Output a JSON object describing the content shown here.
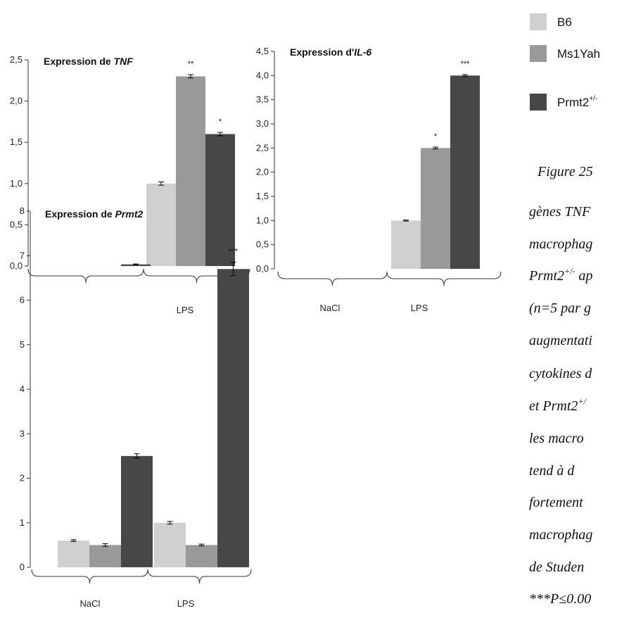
{
  "legend": {
    "items": [
      {
        "label": "B6",
        "color": "#d0d0d0"
      },
      {
        "label": "Ms1Yah",
        "color": "#999999"
      },
      {
        "label": "Prmt2",
        "sup": "+/-",
        "color": "#474747"
      }
    ]
  },
  "caption": {
    "lines": [
      {
        "text": "Figure 25"
      },
      {
        "text": "gènes TNF"
      },
      {
        "text": "macrophag"
      },
      {
        "text": "Prmt2",
        "sup": "+/-",
        "rest": " ap"
      },
      {
        "text": "(n=5 par g"
      },
      {
        "text": "augmentati"
      },
      {
        "text": "cytokines d"
      },
      {
        "text": "et Prmt2",
        "sup": "+/"
      },
      {
        "text": "les macro"
      },
      {
        "text": "tend à d"
      },
      {
        "text": "fortement"
      },
      {
        "text": "macrophag"
      },
      {
        "text": "de Studen"
      },
      {
        "text": "***P≤0.00"
      }
    ]
  },
  "chart_data": [
    {
      "type": "bar",
      "title_prefix": "Expression de ",
      "title_gene": "TNF",
      "groups": [
        "",
        "LPS"
      ],
      "series": [
        {
          "name": "B6",
          "values": [
            null,
            1.0
          ],
          "errors": [
            null,
            0.02
          ]
        },
        {
          "name": "Ms1Yah",
          "values": [
            null,
            2.3
          ],
          "errors": [
            null,
            0.02
          ]
        },
        {
          "name": "Prmt2+/-",
          "values": [
            0.02,
            1.6
          ],
          "errors": [
            0.005,
            0.02
          ]
        }
      ],
      "significance": [
        {
          "series": 1,
          "group": 1,
          "label": "**"
        },
        {
          "series": 2,
          "group": 1,
          "label": "*"
        }
      ],
      "yticks": [
        "0,0",
        "0,5",
        "1,0",
        "1,5",
        "2,0",
        "2,5"
      ],
      "ylim": [
        0,
        2.5
      ]
    },
    {
      "type": "bar",
      "title_prefix": "Expression d'",
      "title_gene": "IL-6",
      "groups": [
        "NaCl",
        "LPS"
      ],
      "series": [
        {
          "name": "B6",
          "values": [
            null,
            1.0
          ],
          "errors": [
            null,
            0.01
          ]
        },
        {
          "name": "Ms1Yah",
          "values": [
            null,
            2.5
          ],
          "errors": [
            null,
            0.02
          ]
        },
        {
          "name": "Prmt2+/-",
          "values": [
            null,
            4.0
          ],
          "errors": [
            null,
            0.02
          ]
        }
      ],
      "significance": [
        {
          "series": 1,
          "group": 1,
          "label": "*"
        },
        {
          "series": 2,
          "group": 1,
          "label": "***"
        }
      ],
      "yticks": [
        "0,0",
        "0,5",
        "1,0",
        "1,5",
        "2,0",
        "2,5",
        "3,0",
        "3,5",
        "4,0",
        "4,5"
      ],
      "ylim": [
        0,
        4.5
      ]
    },
    {
      "type": "bar",
      "title_prefix": "Expression de ",
      "title_gene": "Prmt2",
      "groups": [
        "NaCl",
        "LPS"
      ],
      "series": [
        {
          "name": "B6",
          "values": [
            0.6,
            1.0
          ],
          "errors": [
            0.02,
            0.03
          ]
        },
        {
          "name": "Ms1Yah",
          "values": [
            0.5,
            0.5
          ],
          "errors": [
            0.03,
            0.02
          ]
        },
        {
          "name": "Prmt2+/-",
          "values": [
            2.5,
            6.7
          ],
          "errors": [
            0.05,
            0.15
          ]
        }
      ],
      "significance": [
        {
          "series": 2,
          "group": 1,
          "label": "***"
        }
      ],
      "yticks": [
        "0",
        "1",
        "2",
        "3",
        "4",
        "5",
        "6",
        "7",
        "8"
      ],
      "ylim": [
        0,
        8
      ]
    }
  ]
}
